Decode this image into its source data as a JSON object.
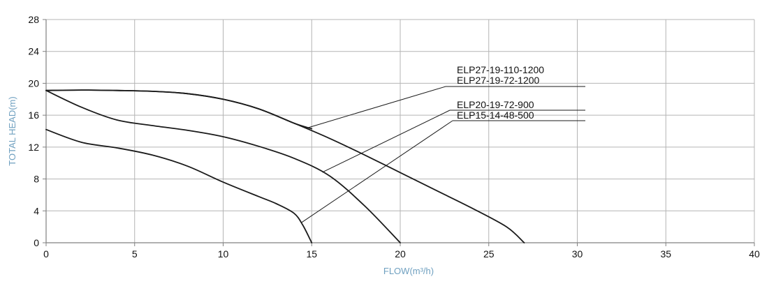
{
  "chart_data": {
    "type": "line",
    "xlabel": "FLOW(m³/h)",
    "ylabel": "TOTAL HEAD(m)",
    "xlim": [
      0,
      40
    ],
    "ylim": [
      0,
      28
    ],
    "xticks": [
      0,
      5,
      10,
      15,
      20,
      25,
      30,
      35,
      40
    ],
    "yticks": [
      0,
      4,
      8,
      12,
      16,
      20,
      24,
      28
    ],
    "grid": true,
    "legend": "callout labels, top-middle-right",
    "colors": {
      "grid": "#b4b4b4",
      "axis": "#808080",
      "curve": "#1a1a1a",
      "label": "#6fa0c0",
      "text": "#111111"
    },
    "labels": [
      "ELP27-19-110-1200",
      "ELP27-19-72-1200",
      "ELP20-19-72-900",
      "ELP15-14-48-500"
    ],
    "series": [
      {
        "name": "ELP27-19-110-1200",
        "x": [
          0,
          2,
          4,
          6,
          8,
          10,
          12,
          14,
          16,
          18,
          20,
          22,
          24,
          26,
          27
        ],
        "y": [
          19.1,
          19.15,
          19.1,
          19.0,
          18.7,
          18.0,
          16.8,
          15.0,
          13.1,
          11.0,
          8.8,
          6.6,
          4.4,
          2.0,
          0
        ]
      },
      {
        "name": "ELP27-19-72-1200",
        "x": [
          0,
          2,
          4,
          6,
          8,
          10,
          12,
          14,
          15
        ],
        "y": [
          19.1,
          19.15,
          19.1,
          19.0,
          18.7,
          18.0,
          16.8,
          15.0,
          14.3
        ]
      },
      {
        "name": "ELP20-19-72-900",
        "x": [
          0,
          2,
          4,
          6,
          8,
          10,
          12,
          14,
          16,
          18,
          20
        ],
        "y": [
          19.1,
          17.0,
          15.4,
          14.7,
          14.1,
          13.3,
          12.1,
          10.6,
          8.4,
          4.6,
          0
        ]
      },
      {
        "name": "ELP15-14-48-500",
        "x": [
          0,
          2,
          4,
          6,
          8,
          10,
          12,
          13,
          14,
          14.5,
          15
        ],
        "y": [
          14.2,
          12.6,
          11.9,
          11.0,
          9.6,
          7.6,
          5.8,
          4.9,
          3.7,
          2.2,
          0
        ]
      }
    ]
  }
}
